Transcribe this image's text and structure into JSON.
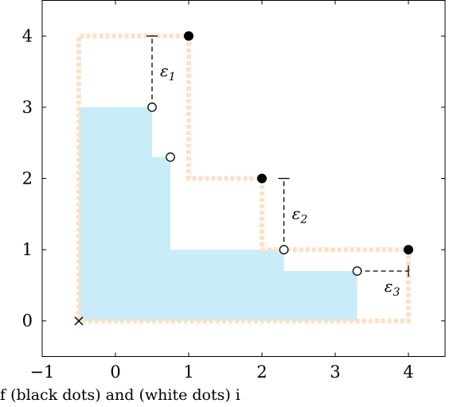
{
  "chart_data": {
    "type": "scatter",
    "xlim": [
      -1.0,
      4.5
    ],
    "ylim": [
      -0.5,
      4.5
    ],
    "xticks": [
      -1,
      0,
      1,
      2,
      3,
      4
    ],
    "yticks": [
      0,
      1,
      2,
      3,
      4
    ],
    "xtick_labels": [
      "−1",
      "0",
      "1",
      "2",
      "3",
      "4"
    ],
    "ytick_labels": [
      "0",
      "1",
      "2",
      "3",
      "4"
    ],
    "grid": false,
    "colors": {
      "filled_region": "#c8ecf8",
      "dotted_outline": "#fde0c5",
      "markers": "#000000"
    },
    "reference_point": [
      -0.5,
      0
    ],
    "filled_points": [
      [
        1,
        4
      ],
      [
        2,
        2
      ],
      [
        4,
        1
      ]
    ],
    "open_points": [
      [
        0.5,
        3
      ],
      [
        0.75,
        2.3
      ],
      [
        2.3,
        1
      ],
      [
        3.3,
        0.7
      ]
    ],
    "filled_region_polygon": [
      [
        -0.5,
        0
      ],
      [
        -0.5,
        3
      ],
      [
        0.5,
        3
      ],
      [
        0.5,
        2.3
      ],
      [
        0.75,
        2.3
      ],
      [
        0.75,
        1
      ],
      [
        2.3,
        1
      ],
      [
        2.3,
        0.7
      ],
      [
        3.3,
        0.7
      ],
      [
        3.3,
        0
      ]
    ],
    "dotted_outline_polygon": [
      [
        -0.5,
        0
      ],
      [
        -0.5,
        4
      ],
      [
        1,
        4
      ],
      [
        1,
        2
      ],
      [
        2,
        2
      ],
      [
        2,
        1
      ],
      [
        4,
        1
      ],
      [
        4,
        0
      ]
    ],
    "epsilon_segments": [
      {
        "label": "ε",
        "subscript": "1",
        "from": [
          0.5,
          3
        ],
        "to": [
          0.5,
          4
        ],
        "orientation": "vertical"
      },
      {
        "label": "ε",
        "subscript": "2",
        "from": [
          2.3,
          1
        ],
        "to": [
          2.3,
          2
        ],
        "orientation": "vertical"
      },
      {
        "label": "ε",
        "subscript": "3",
        "from": [
          3.3,
          0.7
        ],
        "to": [
          4,
          0.7
        ],
        "orientation": "horizontal"
      }
    ]
  },
  "caption": "f     (black dots) and                   (white dots) i"
}
